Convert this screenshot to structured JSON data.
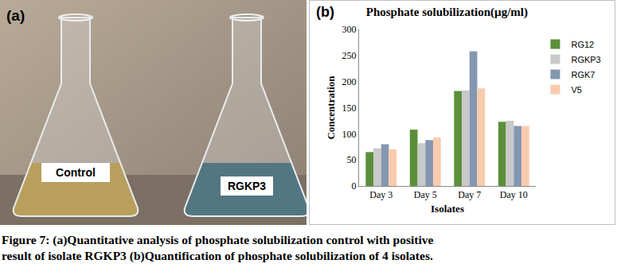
{
  "panel_a": {
    "label": "(a)",
    "flasks": [
      "Control",
      "RGKP3"
    ]
  },
  "panel_b": {
    "label": "(b)"
  },
  "chart_data": {
    "type": "bar",
    "title": "Phosphate solubilization(µg/ml)",
    "x_label": "Isolates",
    "y_label": "Concentration",
    "categories": [
      "Day 3",
      "Day 5",
      "Day 7",
      "Day 10"
    ],
    "series": [
      {
        "name": "RG12",
        "color": "#5b8f3a",
        "values": [
          65,
          108,
          182,
          123
        ]
      },
      {
        "name": "RGKP3",
        "color": "#c9c9c9",
        "values": [
          72,
          82,
          183,
          125
        ]
      },
      {
        "name": "RGK7",
        "color": "#8497b0",
        "values": [
          80,
          88,
          258,
          115
        ]
      },
      {
        "name": "V5",
        "color": "#f8cbad",
        "values": [
          70,
          93,
          187,
          115
        ]
      }
    ],
    "ylim": [
      0,
      300
    ],
    "yticks": [
      0,
      50,
      100,
      150,
      200,
      250,
      300
    ],
    "grid": false,
    "legend": "right"
  },
  "caption": {
    "lines": [
      "Figure 7: (a)Quantitative analysis of phosphate solubilization control with positive",
      "result of isolate RGKP3 (b)Quantification of phosphate solubilization of 4 isolates."
    ]
  }
}
